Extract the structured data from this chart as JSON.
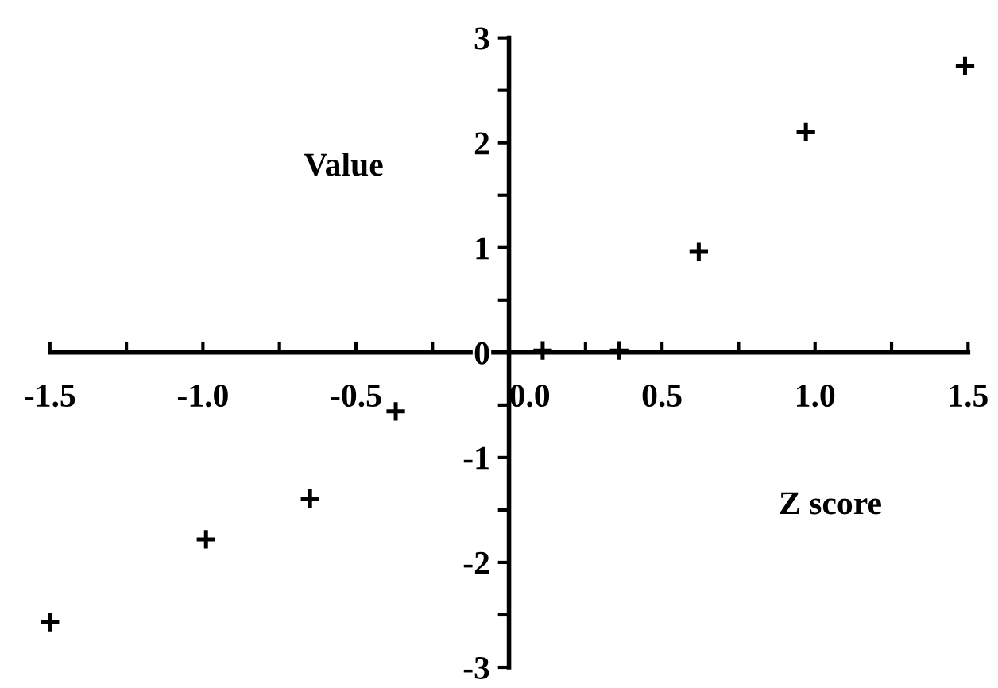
{
  "chart_data": {
    "type": "scatter",
    "xlabel": "Z score",
    "ylabel": "Value",
    "x": [
      -1.5,
      -0.99,
      -0.65,
      -0.37,
      0.11,
      0.36,
      0.62,
      0.97,
      1.49
    ],
    "values": [
      -2.57,
      -1.78,
      -1.39,
      -0.56,
      0.02,
      0.02,
      0.96,
      2.1,
      2.73
    ],
    "color": "#000000",
    "marker": "cross",
    "grid": false,
    "xlim": [
      -1.5,
      1.5
    ],
    "ylim": [
      -3,
      3
    ],
    "xticks": [
      -1.5,
      {
        "value": -1.25,
        "label": null
      },
      {
        "value": -1.0,
        "label": "-1.0"
      },
      {
        "value": -0.75,
        "label": null
      },
      -0.5,
      {
        "value": -0.25,
        "label": null
      },
      {
        "value": 0,
        "label": "0.0"
      },
      {
        "value": 0.25,
        "label": null
      },
      0.5,
      {
        "value": 0.75,
        "label": null
      },
      {
        "value": 1.0,
        "label": "1.0"
      },
      {
        "value": 1.25,
        "label": null
      },
      1.5
    ],
    "yticks": [
      -3,
      {
        "value": -2.5,
        "label": null
      },
      -2,
      {
        "value": -1.5,
        "label": null
      },
      -1,
      {
        "value": -0.5,
        "label": null
      },
      0,
      {
        "value": 0.5,
        "label": null
      },
      1,
      {
        "value": 1.5,
        "label": null
      },
      2,
      {
        "value": 2.5,
        "label": null
      },
      3
    ]
  }
}
